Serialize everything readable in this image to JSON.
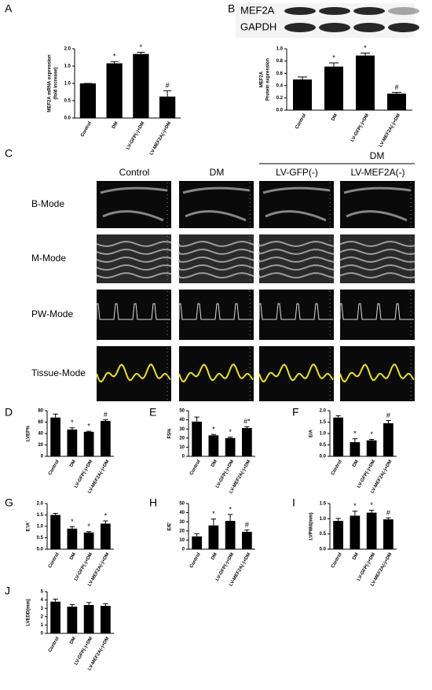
{
  "chart_data": [
    {
      "type": "bar",
      "label": "A",
      "ylabel": [
        "MEF2A mRNA expression",
        "(fold increase)"
      ],
      "categories": [
        "Control",
        "DM",
        "LV-GFP(-)+DM",
        "LV-MEF2A(-)+DM"
      ],
      "values": [
        1.0,
        1.58,
        1.85,
        0.62
      ],
      "errors": [
        0,
        0.05,
        0.05,
        0.17
      ],
      "annotations": [
        null,
        "*",
        "*",
        "#"
      ],
      "color": "#000000",
      "ylim": [
        0,
        2
      ],
      "yticks": [
        {
          "value": 0,
          "label": "0.0"
        },
        {
          "value": 0.5,
          "label": "0.5"
        },
        {
          "value": 1,
          "label": "1.0"
        },
        {
          "value": 1.5,
          "label": "1.5"
        },
        {
          "value": 2,
          "label": "2.0"
        }
      ]
    },
    {
      "type": "bar",
      "label": "B",
      "ylabel": [
        "MEF2A",
        "Protein expression"
      ],
      "categories": [
        "Control",
        "DM",
        "LV-GFP(-)+DM",
        "LV-MEF2A(-)+DM"
      ],
      "values": [
        0.5,
        0.71,
        0.89,
        0.27
      ],
      "errors": [
        0.04,
        0.06,
        0.04,
        0.02
      ],
      "annotations": [
        null,
        "*",
        "*",
        "#"
      ],
      "color": "#000000",
      "ylim": [
        0,
        1
      ],
      "yticks": [
        {
          "value": 0,
          "label": "0.0"
        },
        {
          "value": 0.2,
          "label": "0.2"
        },
        {
          "value": 0.4,
          "label": "0.4"
        },
        {
          "value": 0.6,
          "label": "0.6"
        },
        {
          "value": 0.8,
          "label": "0.8"
        },
        {
          "value": 1,
          "label": "1.0"
        }
      ]
    },
    {
      "type": "bar",
      "label": "D",
      "ylabel": [
        "LVEF%"
      ],
      "categories": [
        "Control",
        "DM",
        "LV-GFP(-)+DM",
        "LV-MEF2A(-)+DM"
      ],
      "values": [
        68,
        47,
        43,
        62
      ],
      "errors": [
        6,
        3,
        1,
        2
      ],
      "annotations": [
        null,
        "*",
        "*",
        "#"
      ],
      "color": "#000000",
      "ylim": [
        0,
        80
      ],
      "yticks": [
        0,
        20,
        40,
        60,
        80
      ]
    },
    {
      "type": "bar",
      "label": "E",
      "ylabel": [
        "FS%"
      ],
      "categories": [
        "Control",
        "DM",
        "LV-GFP(-)+DM",
        "LV-MEF2A(-)+DM"
      ],
      "values": [
        38,
        23,
        20,
        31
      ],
      "errors": [
        5,
        1,
        1,
        1.5
      ],
      "annotations": [
        null,
        "*",
        "*",
        "#*"
      ],
      "color": "#000000",
      "ylim": [
        0,
        50
      ],
      "yticks": [
        0,
        10,
        20,
        30,
        40,
        50
      ]
    },
    {
      "type": "bar",
      "label": "F",
      "ylabel": [
        "E/A"
      ],
      "categories": [
        "Control",
        "DM",
        "LV-GFP(-)+DM",
        "LV-MEF2A(-)+DM"
      ],
      "values": [
        1.7,
        0.62,
        0.7,
        1.45
      ],
      "errors": [
        0.08,
        0.15,
        0.04,
        0.12
      ],
      "annotations": [
        null,
        "*",
        "*",
        "#"
      ],
      "color": "#000000",
      "ylim": [
        0,
        2
      ],
      "yticks": [
        {
          "value": 0,
          "label": "0.0"
        },
        {
          "value": 0.5,
          "label": "0.5"
        },
        {
          "value": 1,
          "label": "1.0"
        },
        {
          "value": 1.5,
          "label": "1.5"
        },
        {
          "value": 2,
          "label": "2.0"
        }
      ]
    },
    {
      "type": "bar",
      "label": "G",
      "ylabel": [
        "E'/A'"
      ],
      "categories": [
        "Control",
        "DM",
        "LV-GFP(-)+DM",
        "LV-MEF2A(-)+DM"
      ],
      "values": [
        1.5,
        0.9,
        0.73,
        1.12
      ],
      "errors": [
        0.07,
        0.08,
        0.04,
        0.12
      ],
      "annotations": [
        null,
        "*",
        "*",
        "*"
      ],
      "color": "#000000",
      "ylim": [
        0,
        2
      ],
      "yticks": [
        {
          "value": 0,
          "label": "0.0"
        },
        {
          "value": 0.5,
          "label": "0.5"
        },
        {
          "value": 1,
          "label": "1.0"
        },
        {
          "value": 1.5,
          "label": "1.5"
        },
        {
          "value": 2,
          "label": "2.0"
        }
      ]
    },
    {
      "type": "bar",
      "label": "H",
      "ylabel": [
        "E/E'"
      ],
      "categories": [
        "Control",
        "DM",
        "LV-GFP(-)+DM",
        "LV-MEF2A(-)+DM"
      ],
      "values": [
        14,
        26,
        31,
        19
      ],
      "errors": [
        3,
        7,
        7,
        2
      ],
      "annotations": [
        null,
        "*",
        "*",
        "#"
      ],
      "color": "#000000",
      "ylim": [
        0,
        50
      ],
      "yticks": [
        0,
        10,
        20,
        30,
        40,
        50
      ]
    },
    {
      "type": "bar",
      "label": "I",
      "ylabel": [
        "LVPWd(mm)"
      ],
      "categories": [
        "Control",
        "DM",
        "LV-GFP(-)+DM",
        "LV-MEF2A(-)+DM"
      ],
      "values": [
        0.93,
        1.1,
        1.2,
        0.98
      ],
      "errors": [
        0.08,
        0.15,
        0.08,
        0.05
      ],
      "annotations": [
        null,
        "*",
        "*",
        "#"
      ],
      "color": "#000000",
      "ylim": [
        0,
        1.5
      ],
      "yticks": [
        {
          "value": 0,
          "label": "0.0"
        },
        {
          "value": 0.5,
          "label": "0.5"
        },
        {
          "value": 1,
          "label": "1.0"
        },
        {
          "value": 1.5,
          "label": "1.5"
        }
      ]
    },
    {
      "type": "bar",
      "label": "J",
      "ylabel": [
        "LVEDD(mm)"
      ],
      "categories": [
        "Control",
        "DM",
        "LV-GFP(-)+DM",
        "LV-MEF2A(-)+DM"
      ],
      "values": [
        3.8,
        3.2,
        3.4,
        3.3
      ],
      "errors": [
        0.3,
        0.25,
        0.3,
        0.25
      ],
      "color": "#000000",
      "ylim": [
        0,
        5
      ],
      "yticks": [
        0,
        1,
        2,
        3,
        4,
        5
      ]
    }
  ],
  "blot": {
    "bands": [
      "MEF2A",
      "GAPDH"
    ]
  },
  "echo": {
    "label": "C",
    "group": "DM",
    "columns": [
      "Control",
      "DM",
      "LV-GFP(-)",
      "LV-MEF2A(-)"
    ],
    "rows": [
      "B-Mode",
      "M-Mode",
      "PW-Mode",
      "Tissue-Mode"
    ]
  }
}
